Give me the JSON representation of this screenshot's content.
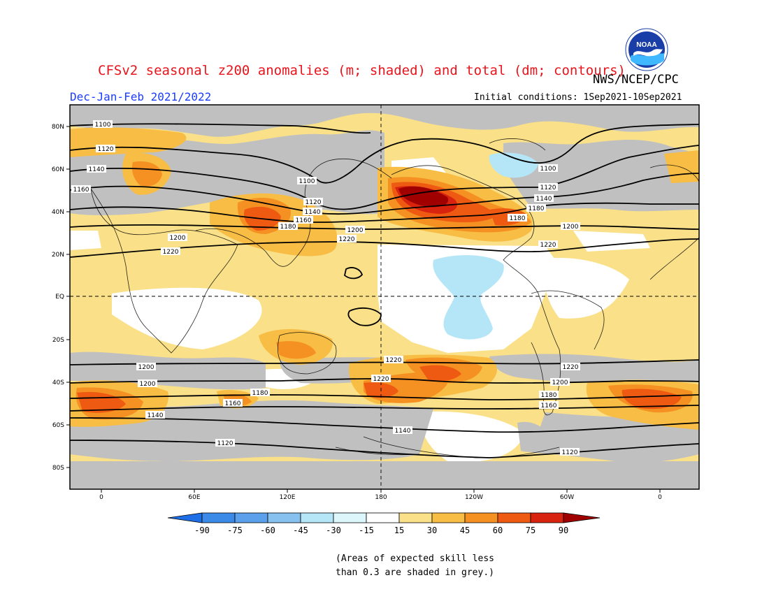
{
  "title": "CFSv2 seasonal z200 anomalies (m; shaded) and total (dm; contours)",
  "period": "Dec-Jan-Feb 2021/2022",
  "agency": "NWS/NCEP/CPC",
  "initial_conditions": "Initial conditions: 1Sep2021-10Sep2021",
  "logo_text": "NOAA",
  "note_lines": [
    "(Areas of expected skill less",
    "than 0.3 are shaded in grey.)"
  ],
  "colors": {
    "grey_low_skill": "#c0c0c0",
    "neg90": "#1e6fe6",
    "neg75": "#3c8ae8",
    "neg60": "#5aa0ea",
    "neg45": "#86c1f0",
    "neg30": "#b4e6f8",
    "pos15": "#fae088",
    "pos30": "#f8bd44",
    "pos45": "#f59022",
    "pos60": "#ef5a12",
    "pos75": "#d8240e",
    "pos90": "#a00000"
  },
  "map": {
    "lat_labels": [
      "80N",
      "60N",
      "40N",
      "20N",
      "EQ",
      "20S",
      "40S",
      "60S",
      "80S"
    ],
    "lon_labels": [
      "0",
      "60E",
      "120E",
      "180",
      "120W",
      "60W",
      "0"
    ],
    "contour_labels": [
      "1100",
      "1120",
      "1140",
      "1160",
      "1180",
      "1200",
      "1220",
      "1100",
      "1120",
      "1140",
      "1160",
      "1180",
      "1200",
      "1220",
      "1200",
      "1220",
      "1100",
      "1120",
      "1140",
      "1180",
      "1200",
      "1220",
      "1220",
      "1200",
      "1180",
      "1160",
      "1140",
      "1120",
      "1220",
      "1200",
      "1180",
      "1160",
      "1140",
      "1120",
      "1220",
      "1200",
      "1180",
      "1160"
    ],
    "colorbar_ticks": [
      "-90",
      "-75",
      "-60",
      "-45",
      "-30",
      "-15",
      "15",
      "30",
      "45",
      "60",
      "75",
      "90"
    ]
  }
}
